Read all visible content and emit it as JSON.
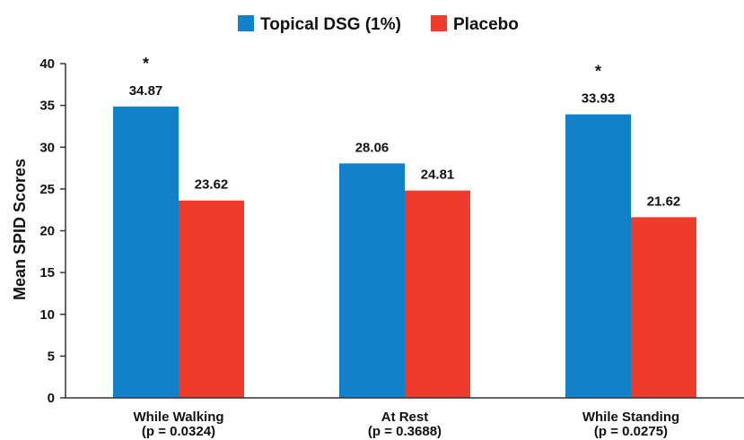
{
  "chart_data": {
    "type": "bar",
    "title": "",
    "xlabel": "",
    "ylabel": "Mean SPID Scores",
    "ylim": [
      0,
      40
    ],
    "yticks": [
      0,
      5,
      10,
      15,
      20,
      25,
      30,
      35,
      40
    ],
    "grid": false,
    "legend_position": "top-center",
    "categories": [
      {
        "label": "While Walking",
        "sublabel": "(p = 0.0324)"
      },
      {
        "label": "At Rest",
        "sublabel": "(p = 0.3688)"
      },
      {
        "label": "While Standing",
        "sublabel": "(p = 0.0275)"
      }
    ],
    "series": [
      {
        "name": "Topical DSG (1%)",
        "color": "#1380cc",
        "values": [
          34.87,
          28.06,
          33.93
        ],
        "labels": [
          "34.87",
          "28.06",
          "33.93"
        ]
      },
      {
        "name": "Placebo",
        "color": "#ef3b2c",
        "values": [
          23.62,
          24.81,
          21.62
        ],
        "labels": [
          "23.62",
          "24.81",
          "21.62"
        ]
      }
    ],
    "significance_marks": [
      "*",
      "",
      "*"
    ]
  }
}
